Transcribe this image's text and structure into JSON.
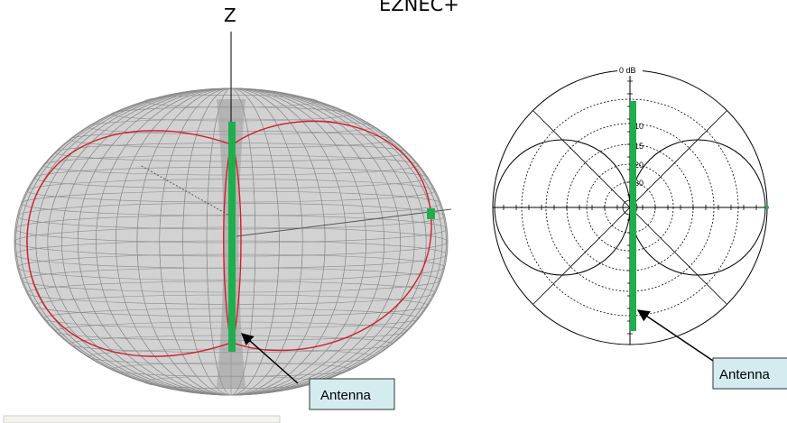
{
  "top_label": "EZNEC+",
  "axis_label_z": "Z",
  "polar_label": "0 dB",
  "polar_ring_labels": [
    "-10",
    "-15",
    "-20",
    "-30"
  ],
  "callout_left": "Antenna",
  "callout_right": "Antenna",
  "colors": {
    "mesh": "#8a8a8a",
    "mesh_light": "#b5b5b5",
    "cut_curve": "#d0202a",
    "antenna": "#1fae4e",
    "callout_fill": "#d4ecef",
    "callout_stroke": "#333333"
  },
  "icons": [
    "antenna-element",
    "arrow-pointer"
  ]
}
